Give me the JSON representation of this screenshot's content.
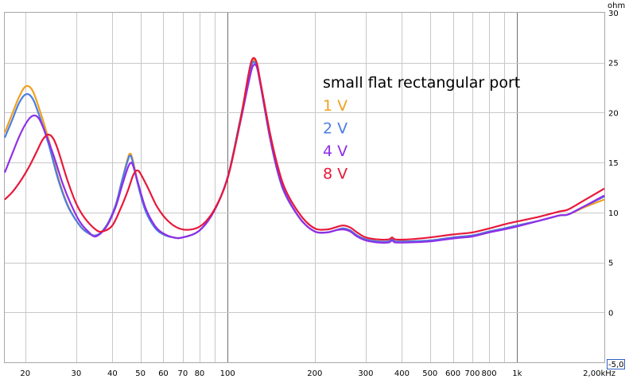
{
  "chart_data": {
    "type": "line",
    "xscale": "log",
    "xlim": [
      17,
      2000
    ],
    "ylim": [
      -5,
      30
    ],
    "y_unit": "ohm",
    "grid": true,
    "x_ticks": [
      {
        "v": 20,
        "label": "20"
      },
      {
        "v": 30,
        "label": "30"
      },
      {
        "v": 40,
        "label": "40"
      },
      {
        "v": 50,
        "label": "50"
      },
      {
        "v": 60,
        "label": "60"
      },
      {
        "v": 70,
        "label": "70"
      },
      {
        "v": 80,
        "label": "80"
      },
      {
        "v": 100,
        "label": "100"
      },
      {
        "v": 200,
        "label": "200"
      },
      {
        "v": 300,
        "label": "300"
      },
      {
        "v": 400,
        "label": "400"
      },
      {
        "v": 500,
        "label": "500"
      },
      {
        "v": 600,
        "label": "600"
      },
      {
        "v": 700,
        "label": "700"
      },
      {
        "v": 800,
        "label": "800"
      },
      {
        "v": 1000,
        "label": "1k"
      },
      {
        "v": 2000,
        "label": "2,00kHz"
      }
    ],
    "y_ticks": [
      {
        "v": 30,
        "label": "30"
      },
      {
        "v": 25,
        "label": "25"
      },
      {
        "v": 20,
        "label": "20"
      },
      {
        "v": 15,
        "label": "15"
      },
      {
        "v": 10,
        "label": "10"
      },
      {
        "v": 5,
        "label": "5"
      },
      {
        "v": 0,
        "label": "0"
      }
    ],
    "y_min_label": "-5,0",
    "annotation_title": "small flat rectangular port",
    "series": [
      {
        "name": "1 V",
        "color": "#f0a020",
        "points": [
          [
            17,
            18
          ],
          [
            18,
            19.8
          ],
          [
            19,
            21.5
          ],
          [
            20,
            22.6
          ],
          [
            21,
            22.4
          ],
          [
            22,
            21
          ],
          [
            24,
            17.5
          ],
          [
            26,
            13.5
          ],
          [
            28,
            10.8
          ],
          [
            30,
            9.2
          ],
          [
            32,
            8.2
          ],
          [
            35,
            7.7
          ],
          [
            38,
            8.6
          ],
          [
            41,
            10.7
          ],
          [
            43,
            13
          ],
          [
            45,
            15.2
          ],
          [
            46,
            15.9
          ],
          [
            47,
            15.3
          ],
          [
            49,
            13
          ],
          [
            52,
            10.3
          ],
          [
            56,
            8.6
          ],
          [
            60,
            7.9
          ],
          [
            65,
            7.5
          ],
          [
            70,
            7.5
          ],
          [
            80,
            8.2
          ],
          [
            90,
            10.2
          ],
          [
            100,
            13.5
          ],
          [
            110,
            19
          ],
          [
            118,
            23.5
          ],
          [
            122,
            25.2
          ],
          [
            126,
            24.7
          ],
          [
            130,
            22.8
          ],
          [
            140,
            17.5
          ],
          [
            150,
            13.7
          ],
          [
            160,
            11.5
          ],
          [
            180,
            9.2
          ],
          [
            200,
            8.1
          ],
          [
            220,
            8
          ],
          [
            235,
            8.2
          ],
          [
            250,
            8.4
          ],
          [
            265,
            8.2
          ],
          [
            280,
            7.7
          ],
          [
            300,
            7.3
          ],
          [
            330,
            7.1
          ],
          [
            360,
            7.1
          ],
          [
            370,
            7.3
          ],
          [
            380,
            7.1
          ],
          [
            420,
            7.1
          ],
          [
            500,
            7.2
          ],
          [
            600,
            7.5
          ],
          [
            700,
            7.7
          ],
          [
            800,
            8.1
          ],
          [
            900,
            8.4
          ],
          [
            1000,
            8.7
          ],
          [
            1200,
            9.2
          ],
          [
            1400,
            9.7
          ],
          [
            1500,
            9.8
          ],
          [
            1700,
            10.5
          ],
          [
            2000,
            11.3
          ]
        ]
      },
      {
        "name": "2 V",
        "color": "#4a7ee0",
        "points": [
          [
            17,
            17.5
          ],
          [
            18,
            19.2
          ],
          [
            19,
            20.9
          ],
          [
            20,
            21.8
          ],
          [
            21,
            21.6
          ],
          [
            22,
            20.3
          ],
          [
            24,
            17
          ],
          [
            26,
            13.3
          ],
          [
            28,
            10.7
          ],
          [
            30,
            9.2
          ],
          [
            32,
            8.2
          ],
          [
            35,
            7.7
          ],
          [
            38,
            8.6
          ],
          [
            41,
            10.7
          ],
          [
            43,
            13
          ],
          [
            45,
            15
          ],
          [
            46,
            15.7
          ],
          [
            47,
            15.1
          ],
          [
            49,
            12.8
          ],
          [
            52,
            10.2
          ],
          [
            56,
            8.5
          ],
          [
            60,
            7.8
          ],
          [
            65,
            7.5
          ],
          [
            70,
            7.5
          ],
          [
            80,
            8.2
          ],
          [
            90,
            10.2
          ],
          [
            100,
            13.5
          ],
          [
            110,
            19
          ],
          [
            118,
            23.3
          ],
          [
            122,
            25
          ],
          [
            126,
            24.6
          ],
          [
            130,
            22.7
          ],
          [
            140,
            17.5
          ],
          [
            150,
            13.7
          ],
          [
            160,
            11.5
          ],
          [
            180,
            9.2
          ],
          [
            200,
            8.1
          ],
          [
            220,
            8
          ],
          [
            235,
            8.2
          ],
          [
            250,
            8.4
          ],
          [
            265,
            8.2
          ],
          [
            280,
            7.7
          ],
          [
            300,
            7.3
          ],
          [
            330,
            7.1
          ],
          [
            360,
            7.1
          ],
          [
            370,
            7.3
          ],
          [
            380,
            7.1
          ],
          [
            420,
            7.1
          ],
          [
            500,
            7.2
          ],
          [
            600,
            7.5
          ],
          [
            700,
            7.7
          ],
          [
            800,
            8.1
          ],
          [
            900,
            8.4
          ],
          [
            1000,
            8.7
          ],
          [
            1200,
            9.2
          ],
          [
            1400,
            9.7
          ],
          [
            1500,
            9.8
          ],
          [
            1700,
            10.6
          ],
          [
            2000,
            11.6
          ]
        ]
      },
      {
        "name": "4 V",
        "color": "#8f2ee8",
        "points": [
          [
            17,
            14
          ],
          [
            18,
            15.8
          ],
          [
            19,
            17.5
          ],
          [
            20,
            18.8
          ],
          [
            21,
            19.6
          ],
          [
            22,
            19.6
          ],
          [
            23,
            18.6
          ],
          [
            25,
            15.8
          ],
          [
            27,
            12.8
          ],
          [
            29,
            10.6
          ],
          [
            31,
            9
          ],
          [
            33,
            8.1
          ],
          [
            35,
            7.6
          ],
          [
            38,
            8.5
          ],
          [
            41,
            10.5
          ],
          [
            43,
            12.5
          ],
          [
            45,
            14.3
          ],
          [
            46,
            14.9
          ],
          [
            47,
            14.8
          ],
          [
            49,
            13
          ],
          [
            52,
            10.5
          ],
          [
            56,
            8.7
          ],
          [
            60,
            7.9
          ],
          [
            65,
            7.5
          ],
          [
            70,
            7.5
          ],
          [
            80,
            8.2
          ],
          [
            90,
            10.2
          ],
          [
            100,
            13.5
          ],
          [
            110,
            18.7
          ],
          [
            118,
            22.9
          ],
          [
            122,
            24.6
          ],
          [
            126,
            24.6
          ],
          [
            130,
            22.8
          ],
          [
            140,
            17.6
          ],
          [
            150,
            13.8
          ],
          [
            160,
            11.6
          ],
          [
            180,
            9.2
          ],
          [
            200,
            8.1
          ],
          [
            220,
            8
          ],
          [
            235,
            8.2
          ],
          [
            250,
            8.3
          ],
          [
            265,
            8.1
          ],
          [
            280,
            7.6
          ],
          [
            300,
            7.2
          ],
          [
            330,
            7
          ],
          [
            360,
            7
          ],
          [
            370,
            7.2
          ],
          [
            380,
            7
          ],
          [
            420,
            7
          ],
          [
            500,
            7.1
          ],
          [
            600,
            7.4
          ],
          [
            700,
            7.6
          ],
          [
            800,
            8
          ],
          [
            900,
            8.3
          ],
          [
            1000,
            8.6
          ],
          [
            1200,
            9.2
          ],
          [
            1400,
            9.7
          ],
          [
            1500,
            9.8
          ],
          [
            1700,
            10.6
          ],
          [
            2000,
            11.7
          ]
        ]
      },
      {
        "name": "8 V",
        "color": "#e8183a",
        "points": [
          [
            17,
            11.3
          ],
          [
            18,
            12
          ],
          [
            19,
            12.9
          ],
          [
            20,
            13.9
          ],
          [
            21,
            15
          ],
          [
            22,
            16.2
          ],
          [
            23,
            17.3
          ],
          [
            24,
            17.8
          ],
          [
            25,
            17.4
          ],
          [
            26,
            16.2
          ],
          [
            28,
            13.2
          ],
          [
            30,
            10.9
          ],
          [
            32,
            9.5
          ],
          [
            35,
            8.3
          ],
          [
            37,
            8.1
          ],
          [
            40,
            8.7
          ],
          [
            43,
            10.6
          ],
          [
            45,
            12
          ],
          [
            46,
            12.8
          ],
          [
            47,
            13.6
          ],
          [
            48,
            14.1
          ],
          [
            49,
            14.2
          ],
          [
            50,
            13.9
          ],
          [
            53,
            12.5
          ],
          [
            57,
            10.6
          ],
          [
            62,
            9.2
          ],
          [
            68,
            8.4
          ],
          [
            75,
            8.3
          ],
          [
            82,
            8.8
          ],
          [
            90,
            10.3
          ],
          [
            100,
            13.4
          ],
          [
            110,
            18.8
          ],
          [
            118,
            23.8
          ],
          [
            122,
            25.4
          ],
          [
            126,
            25
          ],
          [
            130,
            23
          ],
          [
            140,
            18
          ],
          [
            150,
            14.3
          ],
          [
            160,
            12
          ],
          [
            180,
            9.6
          ],
          [
            200,
            8.4
          ],
          [
            220,
            8.3
          ],
          [
            235,
            8.5
          ],
          [
            250,
            8.7
          ],
          [
            265,
            8.5
          ],
          [
            280,
            8
          ],
          [
            300,
            7.5
          ],
          [
            330,
            7.3
          ],
          [
            360,
            7.3
          ],
          [
            370,
            7.5
          ],
          [
            380,
            7.3
          ],
          [
            420,
            7.3
          ],
          [
            500,
            7.5
          ],
          [
            600,
            7.8
          ],
          [
            700,
            8
          ],
          [
            800,
            8.4
          ],
          [
            900,
            8.8
          ],
          [
            1000,
            9.1
          ],
          [
            1200,
            9.6
          ],
          [
            1400,
            10.1
          ],
          [
            1500,
            10.3
          ],
          [
            1700,
            11.2
          ],
          [
            2000,
            12.4
          ]
        ]
      }
    ]
  }
}
